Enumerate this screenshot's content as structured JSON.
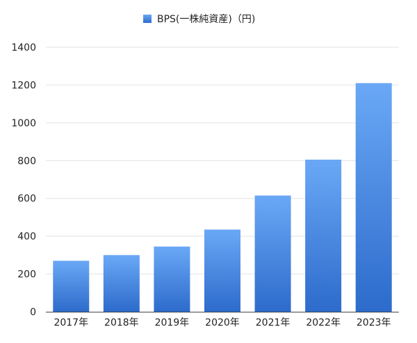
{
  "chart_data": {
    "type": "bar",
    "title": "",
    "xlabel": "",
    "ylabel": "",
    "categories": [
      "2017年",
      "2018年",
      "2019年",
      "2020年",
      "2021年",
      "2022年",
      "2023年"
    ],
    "series": [
      {
        "name": "BPS(一株純資産)（円)",
        "values": [
          270,
          300,
          345,
          435,
          615,
          805,
          1210
        ]
      }
    ],
    "ylim": [
      0,
      1400
    ],
    "yticks": [
      "0",
      "200",
      "400",
      "600",
      "800",
      "1000",
      "1200",
      "1400"
    ],
    "grid": true,
    "legend_position": "top-center",
    "colors": {
      "bar_top": "#6aa8f6",
      "bar_bottom": "#2d6bcc",
      "grid": "#e2e2e2",
      "axis": "#444444"
    }
  }
}
